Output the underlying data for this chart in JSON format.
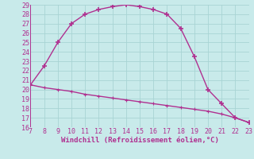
{
  "x": [
    7,
    8,
    9,
    10,
    11,
    12,
    13,
    14,
    15,
    16,
    17,
    18,
    19,
    20,
    21,
    22,
    23
  ],
  "y_upper": [
    20.5,
    22.5,
    25.0,
    27.0,
    28.0,
    28.5,
    28.8,
    29.0,
    28.8,
    28.5,
    28.0,
    26.5,
    23.5,
    20.0,
    18.5,
    17.0,
    16.5
  ],
  "y_lower": [
    20.5,
    20.2,
    20.0,
    19.8,
    19.5,
    19.3,
    19.1,
    18.9,
    18.7,
    18.5,
    18.3,
    18.1,
    17.9,
    17.7,
    17.4,
    17.0,
    16.5
  ],
  "line_color": "#b03090",
  "bg_color": "#c8eaea",
  "grid_color": "#a8d4d4",
  "xlabel": "Windchill (Refroidissement éolien,°C)",
  "xlim": [
    7,
    23
  ],
  "ylim": [
    16,
    29
  ],
  "xticks": [
    7,
    8,
    9,
    10,
    11,
    12,
    13,
    14,
    15,
    16,
    17,
    18,
    19,
    20,
    21,
    22,
    23
  ],
  "yticks": [
    16,
    17,
    18,
    19,
    20,
    21,
    22,
    23,
    24,
    25,
    26,
    27,
    28,
    29
  ],
  "marker": "+",
  "markersize": 5,
  "linewidth": 1.0,
  "tick_fontsize": 6,
  "label_fontsize": 6.5
}
